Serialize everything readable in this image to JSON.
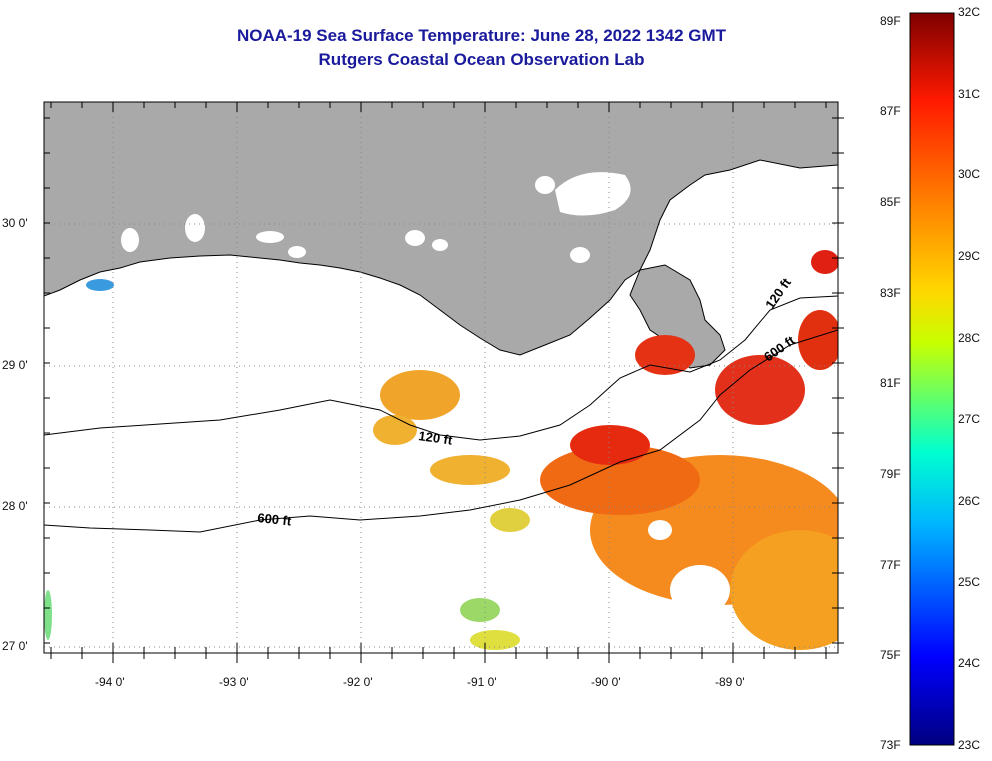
{
  "title_line1": "NOAA-19 Sea Surface Temperature:  June 28, 2022 1342 GMT",
  "title_line2": "Rutgers Coastal Ocean Observation Lab",
  "lat_labels": [
    "30 0'",
    "29 0'",
    "28 0'",
    "27 0'"
  ],
  "lon_labels": [
    "-94 0'",
    "-93 0'",
    "-92 0'",
    "-91 0'",
    "-90 0'",
    "-89 0'"
  ],
  "contour_labels": {
    "c120_west": "120 ft",
    "c600_west": "600 ft",
    "c120_east": "120 ft",
    "c600_east": "600 ft"
  },
  "colorbar": {
    "fahrenheit": [
      "89F",
      "87F",
      "85F",
      "83F",
      "81F",
      "79F",
      "77F",
      "75F",
      "73F"
    ],
    "celsius": [
      "32C",
      "31C",
      "30C",
      "29C",
      "28C",
      "27C",
      "26C",
      "25C",
      "24C",
      "23C"
    ]
  },
  "colors": {
    "title": "#1a1a9c",
    "land": "#a9a9a9",
    "no_data": "#ffffff"
  }
}
